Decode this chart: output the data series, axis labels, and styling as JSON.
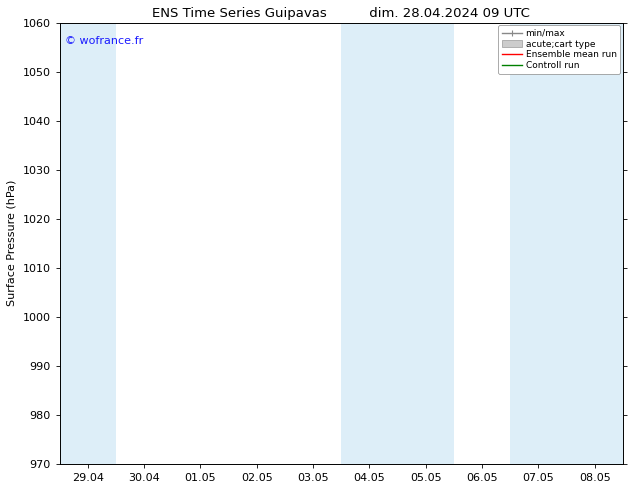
{
  "title_left": "ENS Time Series Guipavas",
  "title_right": "dim. 28.04.2024 09 UTC",
  "ylabel": "Surface Pressure (hPa)",
  "ylim": [
    970,
    1060
  ],
  "yticks": [
    970,
    980,
    990,
    1000,
    1010,
    1020,
    1030,
    1040,
    1050,
    1060
  ],
  "xtick_labels": [
    "29.04",
    "30.04",
    "01.05",
    "02.05",
    "03.05",
    "04.05",
    "05.05",
    "06.05",
    "07.05",
    "08.05"
  ],
  "xtick_positions": [
    0,
    1,
    2,
    3,
    4,
    5,
    6,
    7,
    8,
    9
  ],
  "watermark": "© wofrance.fr",
  "watermark_color": "#1a1aff",
  "bg_color": "#ffffff",
  "plot_bg_color": "#ffffff",
  "shade_color": "#ddeef8",
  "title_fontsize": 9.5,
  "axis_fontsize": 8,
  "ylabel_fontsize": 8
}
